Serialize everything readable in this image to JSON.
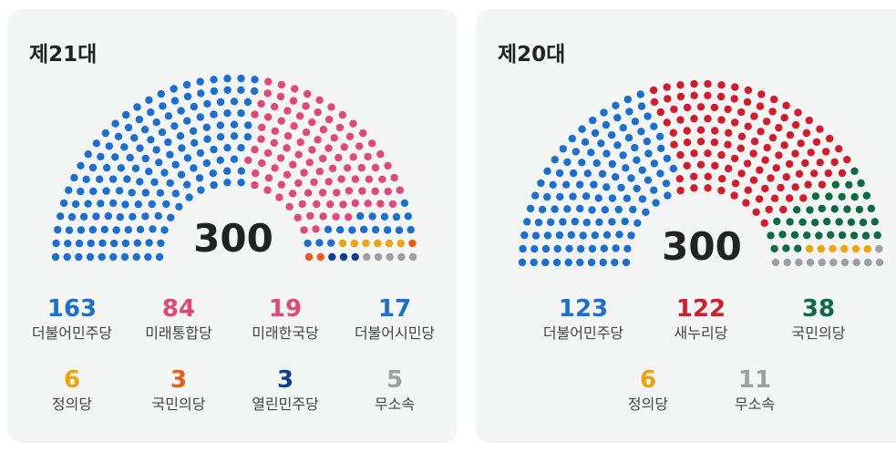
{
  "chart_data": [
    {
      "type": "parliament",
      "title": "제21대",
      "total": "300",
      "parties": [
        {
          "name": "더불어민주당",
          "seats": 163,
          "color": "#1a6fd1"
        },
        {
          "name": "미래통합당",
          "seats": 84,
          "color": "#e2467b"
        },
        {
          "name": "미래한국당",
          "seats": 19,
          "color": "#e2467b"
        },
        {
          "name": "더불어시민당",
          "seats": 17,
          "color": "#1a6fd1"
        },
        {
          "name": "정의당",
          "seats": 6,
          "color": "#f0a20a"
        },
        {
          "name": "국민의당",
          "seats": 3,
          "color": "#ef5a14"
        },
        {
          "name": "열린민주당",
          "seats": 3,
          "color": "#0a3e8f"
        },
        {
          "name": "무소속",
          "seats": 5,
          "color": "#9aa0a4"
        }
      ]
    },
    {
      "type": "parliament",
      "title": "제20대",
      "total": "300",
      "parties": [
        {
          "name": "더불어민주당",
          "seats": 123,
          "color": "#1a6fd1"
        },
        {
          "name": "새누리당",
          "seats": 122,
          "color": "#d31b2c"
        },
        {
          "name": "국민의당",
          "seats": 38,
          "color": "#0b6b42"
        },
        {
          "name": "정의당",
          "seats": 6,
          "color": "#f0a20a"
        },
        {
          "name": "무소속",
          "seats": 11,
          "color": "#9aa0a4"
        }
      ]
    }
  ]
}
